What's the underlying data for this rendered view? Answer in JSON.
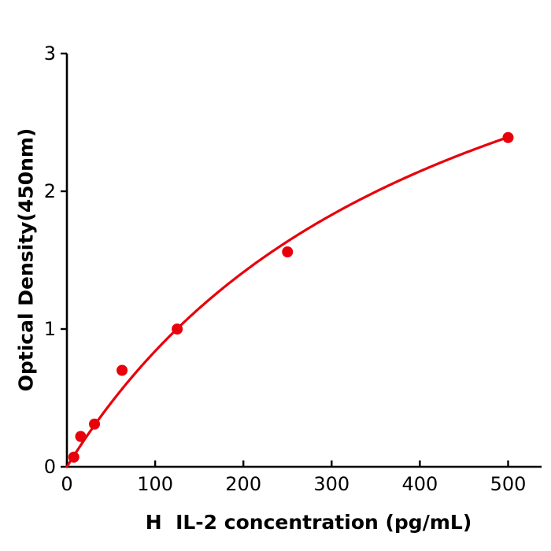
{
  "chart_data": {
    "type": "scatter",
    "subtype": "standard-curve-with-fit",
    "title": "",
    "xlabel": "H  IL-2 concentration (pg/mL)",
    "ylabel": "Optical Density(450nm)",
    "xlim": [
      0,
      538
    ],
    "ylim": [
      0,
      3
    ],
    "x_ticks": [
      0,
      100,
      200,
      300,
      400,
      500
    ],
    "y_ticks": [
      0,
      1,
      2,
      3
    ],
    "grid": false,
    "legend": "none",
    "points": [
      {
        "x": 7.8,
        "y": 0.07
      },
      {
        "x": 15.6,
        "y": 0.22
      },
      {
        "x": 31.25,
        "y": 0.31
      },
      {
        "x": 62.5,
        "y": 0.7
      },
      {
        "x": 125,
        "y": 1.0
      },
      {
        "x": 250,
        "y": 1.56
      },
      {
        "x": 500,
        "y": 2.39
      }
    ],
    "fit_curve": {
      "model": "michaelis-menten",
      "vmax": 4.45,
      "k": 430,
      "x_start": 0,
      "x_end": 500
    },
    "colors": {
      "series": "#e8000b",
      "axis": "#000000"
    }
  }
}
